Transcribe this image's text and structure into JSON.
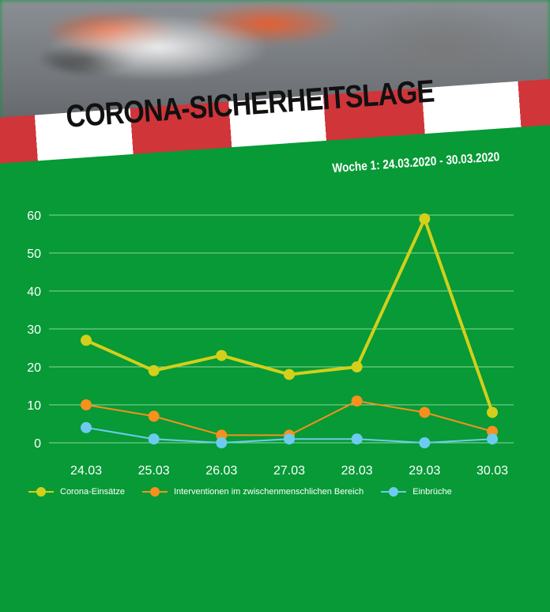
{
  "header": {
    "title": "CORONA-SICHERHEITSLAGE",
    "subtitle": "Woche 1: 24.03.2020 - 30.03.2020"
  },
  "colors": {
    "background": "#079a36",
    "tape_red": "#d0353a",
    "tape_white": "#ffffff"
  },
  "chart_data": {
    "type": "line",
    "categories": [
      "24.03",
      "25.03",
      "26.03",
      "27.03",
      "28.03",
      "29.03",
      "30.03"
    ],
    "ylim": [
      0,
      60
    ],
    "yticks": [
      "0",
      "10",
      "20",
      "30",
      "40",
      "50",
      "60"
    ],
    "grid": true,
    "legend_placement": "bottom",
    "series": [
      {
        "name": "Corona-Einsätze",
        "color": "#d4cf1a",
        "values": [
          27,
          19,
          23,
          18,
          20,
          59,
          8
        ]
      },
      {
        "name": "Interventionen im zwischenmenschlichen Bereich",
        "color": "#f7901e",
        "values": [
          10,
          7,
          2,
          2,
          11,
          8,
          3
        ]
      },
      {
        "name": "Einbrüche",
        "color": "#6ccbef",
        "values": [
          4,
          1,
          0,
          1,
          1,
          0,
          1
        ]
      }
    ]
  }
}
